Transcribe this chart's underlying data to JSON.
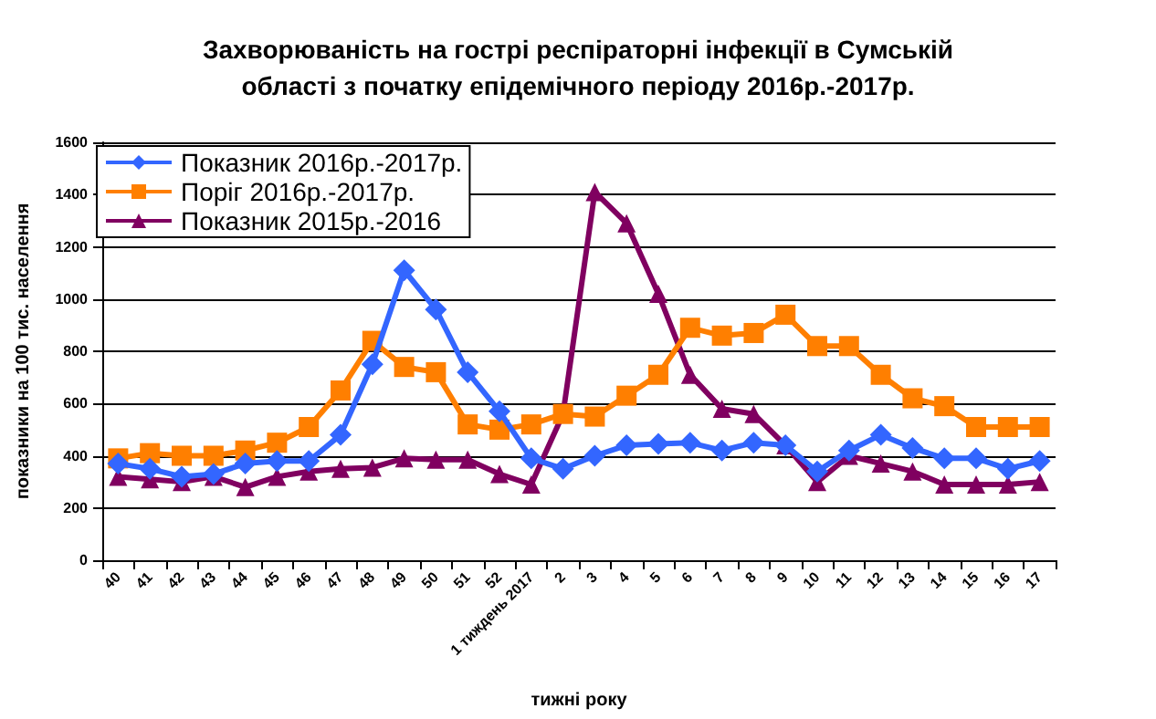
{
  "chart_data": {
    "type": "line",
    "title": "Захворюваність на гострі респіраторні інфекції в Сумській\nобласті з початку епідемічного періоду 2016р.-2017р.",
    "xlabel": "тижні року",
    "ylabel": "показники на 100 тис. населення",
    "categories": [
      "40",
      "41",
      "42",
      "43",
      "44",
      "45",
      "46",
      "47",
      "48",
      "49",
      "50",
      "51",
      "52",
      "1 тиждень 2017",
      "2",
      "3",
      "4",
      "5",
      "6",
      "7",
      "8",
      "9",
      "10",
      "11",
      "12",
      "13",
      "14",
      "15",
      "16",
      "17"
    ],
    "series": [
      {
        "name": "Показник 2016р.-2017р.",
        "color": "#3366ff",
        "marker": "diamond",
        "values": [
          370,
          350,
          320,
          330,
          370,
          380,
          380,
          480,
          750,
          1110,
          960,
          720,
          570,
          390,
          350,
          400,
          440,
          445,
          450,
          420,
          450,
          440,
          340,
          420,
          480,
          430,
          390,
          390,
          350,
          380
        ]
      },
      {
        "name": "Поріг 2016р.-2017р.",
        "color": "#ff7f00",
        "marker": "square",
        "values": [
          390,
          410,
          400,
          400,
          420,
          450,
          510,
          650,
          840,
          740,
          720,
          520,
          500,
          520,
          560,
          550,
          630,
          710,
          890,
          860,
          870,
          940,
          820,
          820,
          710,
          620,
          590,
          510,
          510,
          510
        ]
      },
      {
        "name": "Показник 2015р.-2016",
        "color": "#800060",
        "marker": "triangle",
        "values": [
          320,
          310,
          300,
          320,
          280,
          320,
          340,
          350,
          355,
          390,
          385,
          385,
          330,
          290,
          560,
          1410,
          1290,
          1020,
          710,
          580,
          560,
          440,
          300,
          400,
          370,
          340,
          290,
          290,
          290,
          300
        ]
      }
    ],
    "ylim": [
      0,
      1600
    ],
    "yticks": [
      0,
      200,
      400,
      600,
      800,
      1000,
      1200,
      1400,
      1600
    ],
    "grid": "y",
    "legend": "top left"
  }
}
